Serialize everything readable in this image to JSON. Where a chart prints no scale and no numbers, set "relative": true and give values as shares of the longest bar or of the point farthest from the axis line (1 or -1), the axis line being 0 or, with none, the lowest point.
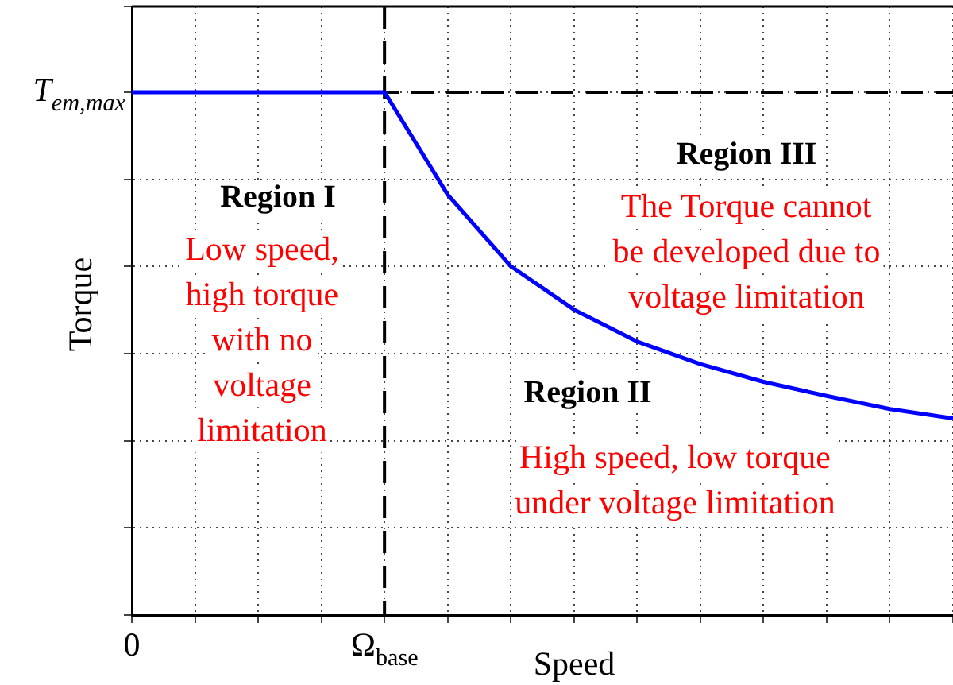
{
  "chart_data": {
    "type": "line",
    "relative": true,
    "xlabel": "Speed",
    "ylabel": "Torque",
    "categories": [
      "0",
      null,
      null,
      null,
      "Ω$_{base}$",
      null,
      null,
      null,
      null,
      null,
      null,
      null,
      null,
      null
    ],
    "series": [
      {
        "color": "#0000ff",
        "values": [
          1,
          1,
          1,
          1,
          1,
          0.804,
          0.667,
          0.584,
          0.523,
          0.48,
          0.446,
          0.419,
          0.394,
          0.376
        ]
      }
    ],
    "ref_lines": [
      {
        "axis": "y",
        "value": 1,
        "label": "T$_{em,max}$",
        "line_style": "dashed",
        "color": "#000000"
      },
      {
        "axis": "x",
        "value": "Ω$_{base}$",
        "line_style": "dashed",
        "color": "#000000"
      }
    ],
    "annotations": [
      "Region I",
      "Low speed,\nhigh torque\nwith no\nvoltage\nlimitation",
      "Region III",
      "The Torque cannot\nbe developed due to\nvoltage limitation",
      "Region II",
      "High speed, low torque\nunder voltage limitation"
    ],
    "grid": true,
    "marker": "none",
    "line_style": "solid",
    "legend": false
  }
}
